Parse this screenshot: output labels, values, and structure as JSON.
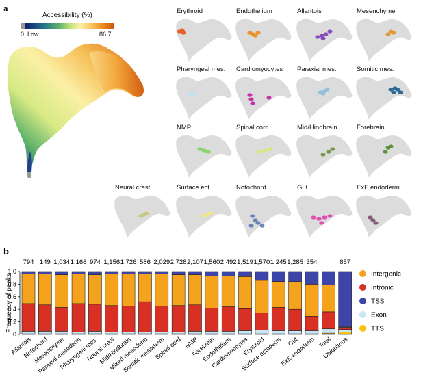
{
  "panel_a": {
    "letter": "a",
    "colorbar": {
      "title": "Accessibility (%)",
      "min_label": "0",
      "low_label": "Low",
      "max_label": "86.7"
    },
    "small_multiples": [
      {
        "title": "Erythroid",
        "color": "#e8551e"
      },
      {
        "title": "Endothelium",
        "color": "#f08a1e"
      },
      {
        "title": "Allantois",
        "color": "#7b3fb5"
      },
      {
        "title": "Mesenchyme",
        "color": "#e0952a"
      },
      {
        "title": "Pharyngeal mes.",
        "color": "#bfe0f2"
      },
      {
        "title": "Cardiomyocytes",
        "color": "#c21f9e"
      },
      {
        "title": "Paraxial mes.",
        "color": "#8cbcd8"
      },
      {
        "title": "Somitic mes.",
        "color": "#1c5f8c"
      },
      {
        "title": "NMP",
        "color": "#7fd05a"
      },
      {
        "title": "Spinal cord",
        "color": "#d8e86a"
      },
      {
        "title": "Mid/Hindbrain",
        "color": "#6f8f3a"
      },
      {
        "title": "Forebrain",
        "color": "#4e8a2e"
      },
      {
        "title": "Neural crest",
        "color": "#c9c47a"
      },
      {
        "title": "Surface ect.",
        "color": "#efe77f"
      },
      {
        "title": "Notochord",
        "color": "#5a7ab5"
      },
      {
        "title": "Gut",
        "color": "#e23fa8"
      },
      {
        "title": "ExE endoderm",
        "color": "#7a4a6a"
      }
    ]
  },
  "chart_data": {
    "panel_letter": "b",
    "type": "bar",
    "stacked": true,
    "ylabel": "Frequency of peaks",
    "ylim": [
      0,
      1.0
    ],
    "yticks": [
      "0",
      "0.2",
      "0.4",
      "0.6",
      "0.8",
      "1.0"
    ],
    "categories": [
      "Allantois",
      "Notochord",
      "Mesenchyme",
      "Paraxial mesoderm",
      "Pharyngeal mes.",
      "Neural crest",
      "Mid/Hindbrain",
      "Mixed mesoderm",
      "Somitic mesoderm",
      "Spinal cord",
      "NMP",
      "Forebrain",
      "Endothelium",
      "Cardiomyocytes",
      "Erythroid",
      "Surface ectoderm",
      "Gut",
      "ExE endoderm",
      "Total",
      "Ubiquitous"
    ],
    "counts": [
      "794",
      "149",
      "1,034",
      "1,166",
      "974",
      "1,156",
      "1,726",
      "586",
      "2,029",
      "2,728",
      "2,107",
      "1,560",
      "2,492",
      "1,519",
      "1,570",
      "1,245",
      "1,285",
      "354",
      "",
      "857"
    ],
    "series": [
      {
        "name": "TTS",
        "color": "#f5c211",
        "values": [
          0.01,
          0.01,
          0.01,
          0.01,
          0.01,
          0.01,
          0.01,
          0.01,
          0.01,
          0.01,
          0.01,
          0.01,
          0.01,
          0.01,
          0.01,
          0.01,
          0.01,
          0.01,
          0.02,
          0.04
        ]
      },
      {
        "name": "Exon",
        "color": "#c9e6f3",
        "values": [
          0.04,
          0.04,
          0.04,
          0.03,
          0.04,
          0.03,
          0.03,
          0.03,
          0.03,
          0.03,
          0.04,
          0.04,
          0.04,
          0.05,
          0.06,
          0.05,
          0.05,
          0.05,
          0.07,
          0.04
        ]
      },
      {
        "name": "Intronic",
        "color": "#d93025",
        "values": [
          0.44,
          0.42,
          0.38,
          0.45,
          0.43,
          0.42,
          0.41,
          0.48,
          0.41,
          0.42,
          0.42,
          0.37,
          0.39,
          0.35,
          0.27,
          0.37,
          0.34,
          0.23,
          0.27,
          0.03
        ]
      },
      {
        "name": "Intergenic",
        "color": "#f5a31c",
        "values": [
          0.47,
          0.49,
          0.52,
          0.47,
          0.47,
          0.5,
          0.51,
          0.44,
          0.51,
          0.49,
          0.48,
          0.51,
          0.49,
          0.51,
          0.52,
          0.41,
          0.44,
          0.51,
          0.43,
          0.01
        ]
      },
      {
        "name": "TSS",
        "color": "#3d45a8",
        "values": [
          0.04,
          0.04,
          0.05,
          0.04,
          0.05,
          0.04,
          0.04,
          0.04,
          0.04,
          0.05,
          0.05,
          0.07,
          0.07,
          0.08,
          0.14,
          0.16,
          0.16,
          0.2,
          0.21,
          0.88
        ]
      }
    ],
    "legend": {
      "position": "right",
      "order": [
        "Intergenic",
        "Intronic",
        "TSS",
        "Exon",
        "TTS"
      ]
    }
  }
}
